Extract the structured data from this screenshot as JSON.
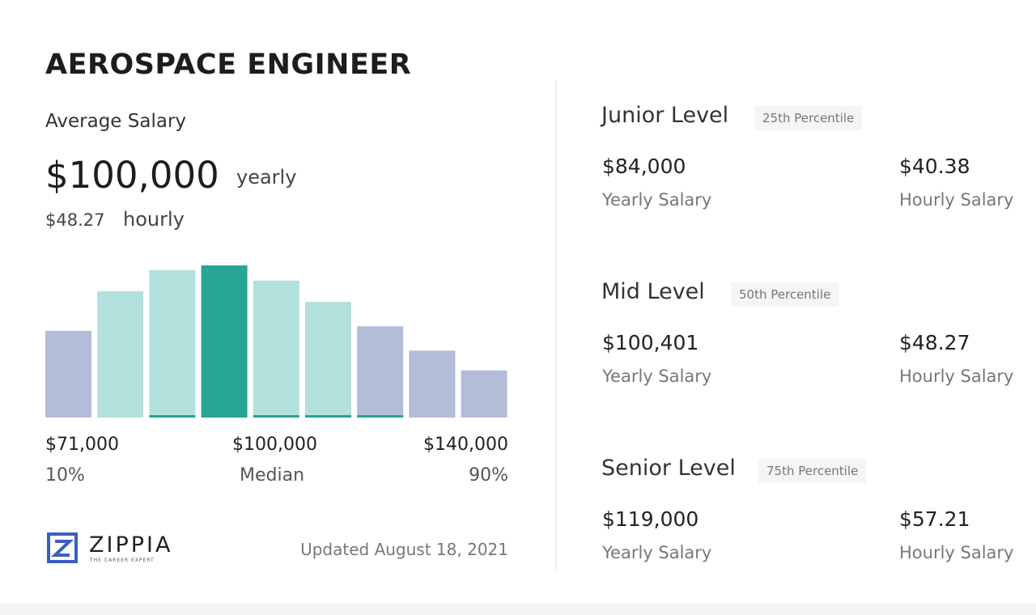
{
  "title": "AEROSPACE ENGINEER",
  "average": {
    "label": "Average Salary",
    "yearly_value": "$100,000",
    "yearly_label": "yearly",
    "hourly_value": "$48.27",
    "hourly_label": "hourly"
  },
  "chart_data": {
    "type": "bar",
    "values": [
      57,
      83,
      97,
      100,
      90,
      76,
      60,
      44,
      31
    ],
    "highlight_index": 3,
    "colors": {
      "outer": "#b3bdd8",
      "inner": "#b2e0dc",
      "median": "#26a594",
      "underline": "#26a594"
    },
    "tick_labels": [
      {
        "value": "$71,000",
        "sub": "10%"
      },
      {
        "value": "$100,000",
        "sub": "Median"
      },
      {
        "value": "$140,000",
        "sub": "90%"
      }
    ]
  },
  "footer": {
    "brand": "ZIPPIA",
    "tagline": "THE CAREER EXPERT",
    "updated": "Updated August 18, 2021"
  },
  "levels": [
    {
      "name": "Junior Level",
      "percentile": "25th Percentile",
      "yearly": "$84,000",
      "yearly_label": "Yearly Salary",
      "hourly": "$40.38",
      "hourly_label": "Hourly Salary"
    },
    {
      "name": "Mid Level",
      "percentile": "50th Percentile",
      "yearly": "$100,401",
      "yearly_label": "Yearly Salary",
      "hourly": "$48.27",
      "hourly_label": "Hourly Salary"
    },
    {
      "name": "Senior Level",
      "percentile": "75th Percentile",
      "yearly": "$119,000",
      "yearly_label": "Yearly Salary",
      "hourly": "$57.21",
      "hourly_label": "Hourly Salary"
    }
  ]
}
